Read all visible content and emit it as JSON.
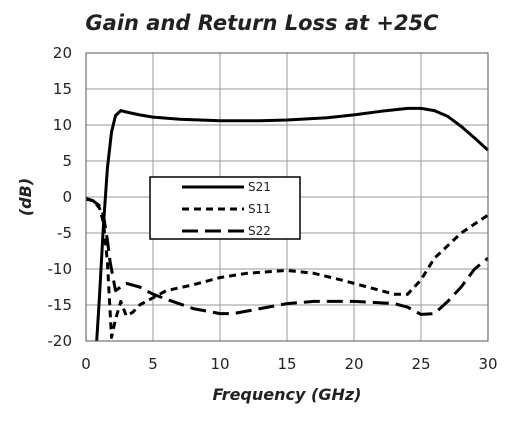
{
  "chart_data": {
    "type": "line",
    "title": "Gain and Return Loss at +25C",
    "xlabel": "Frequency (GHz)",
    "ylabel": "(dB)",
    "xlim": [
      0,
      30
    ],
    "ylim": [
      -20,
      20
    ],
    "xticks": [
      0,
      5,
      10,
      15,
      20,
      25,
      30
    ],
    "yticks": [
      -20,
      -15,
      -10,
      -5,
      0,
      5,
      10,
      15,
      20
    ],
    "grid": true,
    "legend_position": "center-left",
    "series": [
      {
        "name": "S21",
        "style": "solid",
        "color": "#000000",
        "x": [
          0.8,
          1.0,
          1.3,
          1.6,
          1.9,
          2.2,
          2.6,
          3.0,
          4,
          5,
          7,
          10,
          13,
          15,
          18,
          20,
          22,
          24,
          25,
          26,
          27,
          28,
          29,
          30
        ],
        "y": [
          -20,
          -14,
          -4,
          4,
          9,
          11.3,
          12,
          11.8,
          11.4,
          11.1,
          10.8,
          10.6,
          10.6,
          10.7,
          11.0,
          11.4,
          11.9,
          12.3,
          12.3,
          12.0,
          11.2,
          9.8,
          8.2,
          6.5
        ]
      },
      {
        "name": "S11",
        "style": "short-dash",
        "color": "#000000",
        "x": [
          0,
          0.5,
          1.0,
          1.3,
          1.6,
          1.9,
          2.2,
          2.6,
          3.0,
          3.5,
          4,
          5,
          6,
          8,
          10,
          12,
          15,
          17,
          19,
          21,
          23,
          24,
          25,
          26,
          28,
          30
        ],
        "y": [
          -0.3,
          -0.5,
          -1.5,
          -3.5,
          -9,
          -19.5,
          -17,
          -14.5,
          -16.5,
          -16,
          -15,
          -14,
          -13,
          -12.2,
          -11.2,
          -10.6,
          -10.2,
          -10.6,
          -11.5,
          -12.5,
          -13.5,
          -13.5,
          -11.5,
          -8.5,
          -5,
          -2.5
        ]
      },
      {
        "name": "S22",
        "style": "long-dash",
        "color": "#000000",
        "x": [
          0,
          0.5,
          1.0,
          1.3,
          1.6,
          1.8,
          2.0,
          2.2,
          2.6,
          3,
          4,
          5,
          6,
          8,
          10,
          11,
          13,
          15,
          17,
          20,
          23,
          24,
          25,
          26,
          27,
          28,
          29,
          30
        ],
        "y": [
          -0.2,
          -0.5,
          -1.2,
          -2.5,
          -6,
          -9,
          -11,
          -13,
          -12.5,
          -12,
          -12.5,
          -13.5,
          -14.2,
          -15.5,
          -16.2,
          -16.2,
          -15.5,
          -14.8,
          -14.5,
          -14.5,
          -14.8,
          -15.3,
          -16.3,
          -16.2,
          -14.5,
          -12.5,
          -10,
          -8.5
        ]
      }
    ]
  }
}
